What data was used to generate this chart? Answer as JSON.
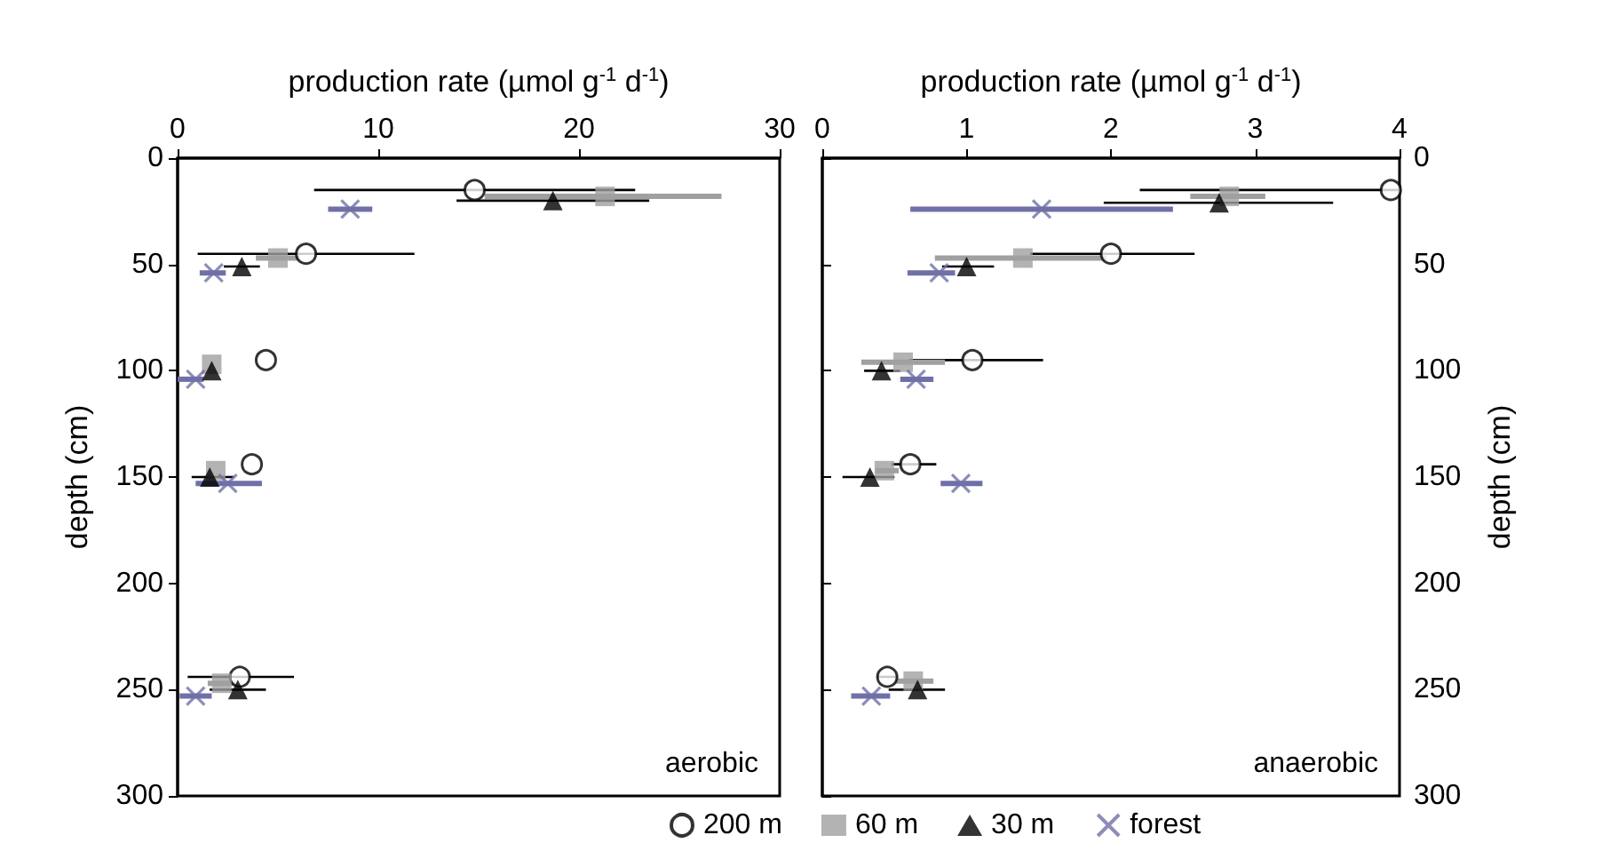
{
  "chart_data": [
    {
      "type": "scatter",
      "xlabel": "production rate (µmol g$^{-1}$ d$^{-1}$)",
      "ylabel": "depth (cm)",
      "xlim": [
        0,
        30
      ],
      "xticks": [
        0,
        10,
        20,
        30
      ],
      "ylim": [
        300,
        0
      ],
      "yticks": [
        0,
        50,
        100,
        150,
        200,
        250,
        300
      ],
      "grid": false,
      "legend": false,
      "annotations": [
        "aerobic"
      ],
      "series": [
        {
          "color": "#000000",
          "marker": "circle",
          "x": [
            14.8,
            6.4,
            4.4,
            3.7,
            3.1
          ],
          "values": [
            15,
            45,
            95,
            144,
            244
          ],
          "xerrors": [
            [
              6.8,
              22.8
            ],
            [
              1.0,
              11.8
            ],
            null,
            null,
            [
              0.5,
              5.8
            ]
          ]
        },
        {
          "color": "#a0a0a0",
          "marker": "square",
          "x": [
            21.3,
            5.0,
            1.7,
            1.9,
            2.2
          ],
          "values": [
            18,
            47,
            97,
            147,
            247
          ],
          "xerrors": [
            [
              15.3,
              27.1
            ],
            [
              3.9,
              6.1
            ],
            null,
            null,
            [
              1.5,
              2.9
            ]
          ]
        },
        {
          "color": "#000000",
          "marker": "triangle",
          "x": [
            18.7,
            3.2,
            1.7,
            1.6,
            3.0
          ],
          "values": [
            20,
            51,
            100,
            150,
            250
          ],
          "xerrors": [
            [
              13.9,
              23.5
            ],
            [
              2.3,
              4.1
            ],
            null,
            [
              0.7,
              2.8
            ],
            [
              1.6,
              4.4
            ]
          ]
        },
        {
          "color": "#7070a8",
          "marker": "cross",
          "x": [
            8.6,
            1.8,
            0.9,
            2.5,
            0.9
          ],
          "values": [
            24,
            54,
            104,
            153,
            253
          ],
          "xerrors": [
            [
              7.5,
              9.7
            ],
            [
              1.1,
              2.4
            ],
            [
              0,
              1.3
            ],
            [
              0.9,
              4.2
            ],
            [
              0.1,
              1.7
            ]
          ]
        }
      ]
    },
    {
      "type": "scatter",
      "xlabel": "production rate (µmol g$^{-1}$ d$^{-1}$)",
      "y2label": "depth (cm)",
      "xlim": [
        0,
        4
      ],
      "xticks": [
        0,
        1,
        2,
        3,
        4
      ],
      "y2lim": [
        300,
        0
      ],
      "y2ticks": [
        0,
        50,
        100,
        150,
        200,
        250,
        300
      ],
      "grid": false,
      "legend": "bottom",
      "annotations": [
        "anaerobic"
      ],
      "series": [
        {
          "name": "200 m",
          "axis": "y2",
          "color": "#000000",
          "marker": "circle",
          "x": [
            3.94,
            2.0,
            1.04,
            0.61,
            0.45
          ],
          "values": [
            15,
            45,
            95,
            144,
            244
          ],
          "xerrors": [
            [
              2.2,
              4.0
            ],
            [
              1.44,
              2.58
            ],
            [
              0.6,
              1.53
            ],
            [
              0.48,
              0.79
            ],
            [
              0.38,
              0.52
            ]
          ]
        },
        {
          "name": "60 m",
          "axis": "y2",
          "color": "#a0a0a0",
          "marker": "square",
          "x": [
            2.82,
            1.39,
            0.56,
            0.43,
            0.63
          ],
          "values": [
            18,
            47,
            96,
            147,
            246
          ],
          "xerrors": [
            [
              2.55,
              3.07
            ],
            [
              0.78,
              1.97
            ],
            [
              0.27,
              0.85
            ],
            [
              0.37,
              0.53
            ],
            [
              0.5,
              0.77
            ]
          ]
        },
        {
          "name": "30 m",
          "axis": "y2",
          "color": "#000000",
          "marker": "triangle",
          "x": [
            2.75,
            1.0,
            0.41,
            0.33,
            0.66
          ],
          "values": [
            21,
            51,
            100,
            150,
            250
          ],
          "xerrors": [
            [
              1.95,
              3.54
            ],
            [
              0.83,
              1.19
            ],
            [
              0.29,
              0.54
            ],
            [
              0.14,
              0.5
            ],
            [
              0.46,
              0.85
            ]
          ]
        },
        {
          "name": "forest",
          "axis": "y2",
          "color": "#7070a8",
          "marker": "cross",
          "x": [
            1.52,
            0.81,
            0.65,
            0.96,
            0.34
          ],
          "values": [
            24,
            54,
            104,
            153,
            253
          ],
          "xerrors": [
            [
              0.61,
              2.43
            ],
            [
              0.59,
              0.92
            ],
            [
              0.54,
              0.77
            ],
            [
              0.82,
              1.11
            ],
            [
              0.2,
              0.47
            ]
          ]
        }
      ]
    }
  ]
}
